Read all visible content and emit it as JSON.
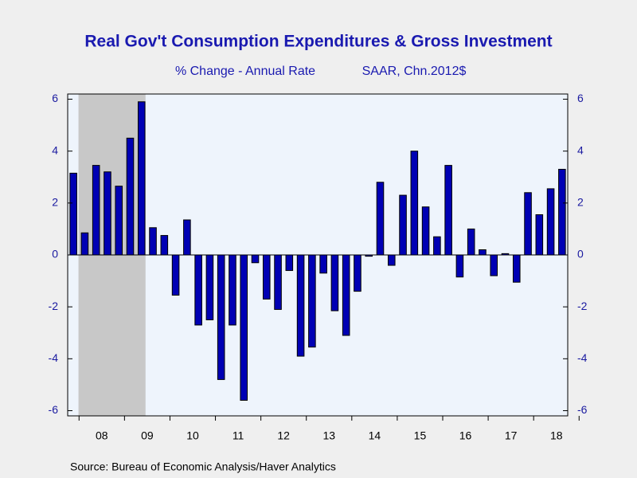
{
  "chart_data": {
    "type": "bar",
    "title": "Real Gov't Consumption Expenditures & Gross Investment",
    "subtitle": [
      "% Change - Annual Rate",
      "SAAR, Chn.2012$"
    ],
    "source": "Source:  Bureau of Economic Analysis/Haver Analytics",
    "categories": [
      null,
      null,
      null,
      null,
      null,
      null,
      null,
      null,
      null,
      null,
      null,
      null,
      null,
      null,
      null,
      null,
      null,
      null,
      null,
      null,
      null,
      null,
      null,
      null,
      null,
      null,
      null,
      null,
      null,
      null,
      null,
      null,
      null,
      null,
      null,
      null,
      null,
      null,
      null,
      null,
      null,
      null,
      null,
      null
    ],
    "year_labels": [
      "08",
      "09",
      "10",
      "11",
      "12",
      "13",
      "14",
      "15",
      "16",
      "17",
      "18"
    ],
    "values": [
      3.15,
      0.85,
      3.45,
      3.2,
      2.65,
      4.5,
      5.9,
      1.05,
      0.75,
      -1.55,
      1.35,
      -2.7,
      -2.5,
      -4.8,
      -2.7,
      -5.6,
      -0.3,
      -1.7,
      -2.1,
      -0.6,
      -3.9,
      -3.55,
      -0.7,
      -2.15,
      -3.1,
      -1.4,
      -0.05,
      2.8,
      -0.4,
      2.3,
      4.0,
      1.85,
      0.7,
      3.45,
      -0.85,
      1.0,
      0.2,
      -0.8,
      0.05,
      -1.05,
      2.4,
      1.55,
      2.55,
      3.3
    ],
    "color": "#0000b4",
    "ylim": [
      -6.2,
      6.2
    ],
    "yticks": [
      -6,
      -4,
      -2,
      0,
      2,
      4,
      6
    ],
    "y2ticks": [
      -6,
      -4,
      -2,
      0,
      2,
      4,
      6
    ]
  }
}
